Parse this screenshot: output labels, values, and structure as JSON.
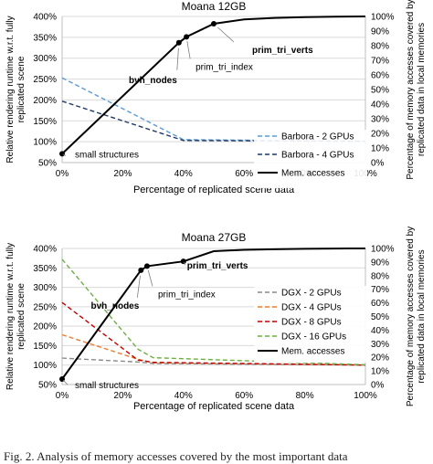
{
  "caption": "Fig. 2. Analysis of memory accesses covered by the most important data",
  "chart_data": [
    {
      "type": "line",
      "title": "Moana 12GB",
      "xlabel": "Percentage of replicated scene data",
      "ylabel_left": "Relative rendering runtime w.r.t. fully replicated scene",
      "ylabel_right": "Percentage of memory accesses covered by replicated data in local memories",
      "x_ticks": [
        "0%",
        "20%",
        "40%",
        "60%",
        "80%",
        "100%"
      ],
      "y_left_ticks": [
        "50%",
        "100%",
        "150%",
        "200%",
        "250%",
        "300%",
        "350%",
        "400%"
      ],
      "y_right_ticks": [
        "0%",
        "10%",
        "20%",
        "30%",
        "40%",
        "50%",
        "60%",
        "70%",
        "80%",
        "90%",
        "100%"
      ],
      "xlim": [
        0,
        100
      ],
      "ylim_left": [
        50,
        400
      ],
      "ylim_right": [
        0,
        100
      ],
      "grid": true,
      "legend_position": "bottom-right",
      "series": [
        {
          "name": "Barbora - 2 GPUs",
          "axis": "left",
          "color": "#5b9bd5",
          "dash": true,
          "x": [
            0,
            40,
            100
          ],
          "values": [
            253,
            105,
            101
          ]
        },
        {
          "name": "Barbora - 4 GPUs",
          "axis": "left",
          "color": "#1f3864",
          "dash": true,
          "x": [
            0,
            40,
            100
          ],
          "values": [
            197,
            103,
            101
          ]
        },
        {
          "name": "Mem. accesses",
          "axis": "right",
          "color": "#000000",
          "dash": false,
          "x": [
            0,
            38.5,
            41,
            50,
            60,
            70,
            80,
            90,
            100
          ],
          "values": [
            6,
            82,
            86,
            95,
            98,
            99,
            99.5,
            99.8,
            100
          ],
          "markers": [
            0,
            1,
            2,
            3
          ]
        }
      ],
      "annotations": [
        {
          "text": "small structures",
          "bold": false,
          "x": 0,
          "y": 6,
          "axis": "right"
        },
        {
          "text": "bvh_nodes",
          "bold": true,
          "x": 38.5,
          "y": 82,
          "axis": "right"
        },
        {
          "text": "prim_tri_index",
          "bold": false,
          "x": 41,
          "y": 86,
          "axis": "right"
        },
        {
          "text": "prim_tri_verts",
          "bold": true,
          "x": 50,
          "y": 95,
          "axis": "right"
        }
      ]
    },
    {
      "type": "line",
      "title": "Moana 27GB",
      "xlabel": "Percentage of replicated scene data",
      "ylabel_left": "Relative rendering runtime w.r.t. fully replicated scene",
      "ylabel_right": "Percentage of memory accesses covered by replicated data in local memories",
      "x_ticks": [
        "0%",
        "20%",
        "40%",
        "60%",
        "80%",
        "100%"
      ],
      "y_left_ticks": [
        "50%",
        "100%",
        "150%",
        "200%",
        "250%",
        "300%",
        "350%",
        "400%"
      ],
      "y_right_ticks": [
        "0%",
        "10%",
        "20%",
        "30%",
        "40%",
        "50%",
        "60%",
        "70%",
        "80%",
        "90%",
        "100%"
      ],
      "xlim": [
        0,
        100
      ],
      "ylim_left": [
        50,
        400
      ],
      "ylim_right": [
        0,
        100
      ],
      "grid": true,
      "legend_position": "right",
      "series": [
        {
          "name": "DGX - 2 GPUs",
          "axis": "left",
          "color": "#8c8c8c",
          "dash": true,
          "x": [
            0,
            25,
            30,
            100
          ],
          "values": [
            118,
            108,
            104,
            100
          ]
        },
        {
          "name": "DGX - 4 GPUs",
          "axis": "left",
          "color": "#ed7d31",
          "dash": true,
          "x": [
            0,
            25,
            30,
            100
          ],
          "values": [
            178,
            115,
            106,
            100
          ]
        },
        {
          "name": "DGX - 8 GPUs",
          "axis": "left",
          "color": "#c00000",
          "dash": true,
          "x": [
            0,
            25,
            30,
            100
          ],
          "values": [
            261,
            113,
            107,
            100
          ]
        },
        {
          "name": "DGX - 16 GPUs",
          "axis": "left",
          "color": "#70ad47",
          "dash": true,
          "x": [
            0,
            25,
            30,
            100
          ],
          "values": [
            372,
            141,
            119,
            101
          ]
        },
        {
          "name": "Mem. accesses",
          "axis": "right",
          "color": "#000000",
          "dash": false,
          "x": [
            0,
            26,
            28,
            40,
            50,
            60,
            70,
            80,
            90,
            100
          ],
          "values": [
            4,
            84,
            87,
            90.5,
            98,
            99,
            99.4,
            99.7,
            99.9,
            100
          ],
          "markers": [
            0,
            1,
            2,
            3
          ]
        }
      ],
      "annotations": [
        {
          "text": "small structures",
          "bold": false,
          "x": 0,
          "y": 4,
          "axis": "right"
        },
        {
          "text": "bvh_nodes",
          "bold": true,
          "x": 26,
          "y": 84,
          "axis": "right"
        },
        {
          "text": "prim_tri_index",
          "bold": false,
          "x": 28,
          "y": 87,
          "axis": "right"
        },
        {
          "text": "prim_tri_verts",
          "bold": true,
          "x": 40,
          "y": 90.5,
          "axis": "right"
        }
      ]
    }
  ]
}
